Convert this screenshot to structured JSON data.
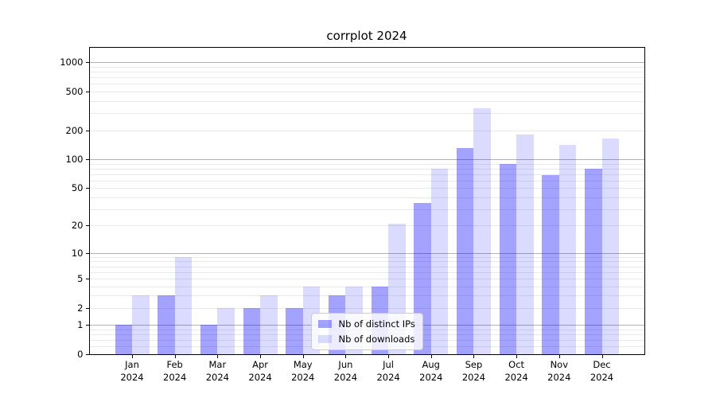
{
  "title": "corrplot 2024",
  "chart_data": {
    "type": "bar",
    "title": "corrplot 2024",
    "yscale": "log10(1+v)",
    "categories": [
      "Jan",
      "Feb",
      "Mar",
      "Apr",
      "May",
      "Jun",
      "Jul",
      "Aug",
      "Sep",
      "Oct",
      "Nov",
      "Dec"
    ],
    "year_label": "2024",
    "series": [
      {
        "name": "Nb of distinct IPs",
        "color": "rgba(0,0,255,0.36)",
        "values": [
          1,
          3,
          1,
          2,
          2,
          3,
          4,
          35,
          132,
          89,
          68,
          80
        ]
      },
      {
        "name": "Nb of downloads",
        "color": "rgba(0,0,255,0.14)",
        "values": [
          3,
          9,
          2,
          3,
          4,
          4,
          21,
          80,
          340,
          180,
          140,
          163
        ]
      }
    ],
    "yticks": [
      0,
      1,
      2,
      5,
      10,
      20,
      50,
      100,
      200,
      500,
      1000
    ],
    "major_gridlines": [
      1,
      10,
      100,
      1000
    ],
    "minor_gridline_subs": [
      0.2,
      0.4,
      0.6,
      0.8,
      2,
      3,
      4,
      5,
      6,
      7,
      8,
      9,
      20,
      30,
      40,
      50,
      60,
      70,
      80,
      90,
      200,
      300,
      400,
      500,
      600,
      700,
      800,
      900
    ],
    "ylim": [
      0,
      1414
    ],
    "grid": true,
    "legend_position": "lower center inside"
  },
  "legend": {
    "items": [
      {
        "label": "Nb of distinct IPs",
        "color": "rgba(0,0,255,0.36)"
      },
      {
        "label": "Nb of downloads",
        "color": "rgba(0,0,255,0.14)"
      }
    ]
  },
  "colors": {
    "background": "#ffffff",
    "bar_distinct_ips": "rgba(0,0,255,0.36)",
    "bar_downloads": "rgba(0,0,255,0.14)",
    "grid_major": "#b2b2b2",
    "grid_minor": "#e9e9e9",
    "spine": "#000000",
    "legend_border": "#cccccc",
    "legend_background": "rgba(255,255,255,0.8)",
    "text": "#000000"
  }
}
